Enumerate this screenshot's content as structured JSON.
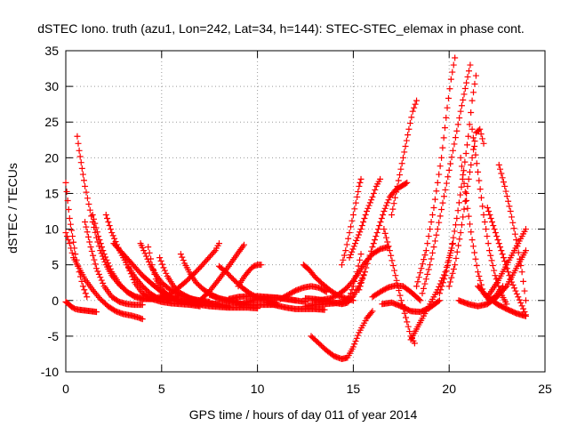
{
  "chart_data": {
    "type": "scatter",
    "title": "dSTEC Iono. truth (azu1, Lon=242, Lat=34, h=144): STEC-STEC_elemax in phase cont.",
    "xlabel": "GPS time / hours of day 011 of year 2014",
    "ylabel": "dSTEC  / TECUs",
    "xlim": [
      0,
      25
    ],
    "ylim": [
      -10,
      35
    ],
    "xticks": [
      0,
      5,
      10,
      15,
      20,
      25
    ],
    "yticks": [
      -10,
      -5,
      0,
      5,
      10,
      15,
      20,
      25,
      30,
      35
    ],
    "grid": true,
    "marker": "+",
    "color": "#ff0000",
    "series": [
      {
        "x": [
          0.0,
          0.15,
          0.3,
          0.5,
          0.7,
          1.0,
          1.3,
          1.6
        ],
        "y": [
          -0.2,
          -0.5,
          -0.9,
          -1.2,
          -1.3,
          -1.4,
          -1.5,
          -1.6
        ]
      },
      {
        "x": [
          0.0,
          0.1,
          0.2,
          0.35,
          0.5,
          0.7,
          0.9,
          1.1
        ],
        "y": [
          16.5,
          14.0,
          11.5,
          9.0,
          6.5,
          4.0,
          2.0,
          0.5
        ]
      },
      {
        "x": [
          0.0,
          0.2,
          0.4,
          0.7,
          1.0,
          1.4,
          1.8,
          2.2,
          2.6,
          3.0,
          3.4,
          3.8,
          4.0
        ],
        "y": [
          9.5,
          8.0,
          6.0,
          4.5,
          3.0,
          1.5,
          0.2,
          -0.8,
          -1.5,
          -1.9,
          -2.1,
          -2.4,
          -2.6
        ]
      },
      {
        "x": [
          0.6,
          0.7,
          0.85,
          1.0,
          1.2,
          1.4,
          1.6,
          1.8,
          2.1,
          2.4,
          2.8,
          3.2,
          3.6,
          4.0,
          4.5
        ],
        "y": [
          23.0,
          21.0,
          18.5,
          16.0,
          13.5,
          11.0,
          8.8,
          7.0,
          5.0,
          3.5,
          2.2,
          1.2,
          0.6,
          0.3,
          0.2
        ]
      },
      {
        "x": [
          1.0,
          1.3,
          1.6,
          2.0,
          2.4,
          2.8,
          3.2,
          3.6,
          4.0
        ],
        "y": [
          11.0,
          7.5,
          4.5,
          2.0,
          0.5,
          -0.2,
          -0.5,
          -0.6,
          -0.6
        ]
      },
      {
        "x": [
          1.4,
          1.7,
          2.0,
          2.4,
          2.8,
          3.2,
          3.6,
          4.0,
          4.4,
          4.8,
          5.2
        ],
        "y": [
          12.0,
          9.0,
          6.5,
          4.0,
          2.3,
          1.2,
          0.5,
          0.2,
          0.2,
          0.4,
          0.8
        ]
      },
      {
        "x": [
          2.1,
          2.4,
          2.8,
          3.2,
          3.6,
          4.0,
          4.4,
          4.8,
          5.2,
          5.6,
          6.0
        ],
        "y": [
          12.0,
          9.5,
          7.0,
          5.0,
          3.3,
          2.0,
          1.0,
          0.3,
          0.1,
          0.3,
          0.9
        ]
      },
      {
        "x": [
          2.5,
          3.0,
          3.5,
          4.0,
          4.5,
          5.0,
          5.5,
          6.0,
          6.5
        ],
        "y": [
          8.0,
          6.5,
          5.0,
          3.5,
          2.3,
          1.2,
          0.4,
          -0.1,
          -0.3
        ]
      },
      {
        "x": [
          3.2,
          3.6,
          4.0,
          4.5,
          5.0,
          5.5,
          6.0,
          6.5,
          7.0
        ],
        "y": [
          5.0,
          2.5,
          1.0,
          0.2,
          -0.2,
          -0.4,
          -0.5,
          -0.6,
          -0.8
        ]
      },
      {
        "x": [
          3.9,
          4.0,
          4.2,
          4.4,
          4.7,
          5.0,
          5.4,
          5.8,
          6.2,
          6.6,
          7.0,
          7.5
        ],
        "y": [
          8.0,
          7.4,
          6.2,
          5.0,
          3.6,
          2.5,
          1.6,
          1.0,
          0.5,
          0.2,
          0.0,
          -0.2
        ]
      },
      {
        "x": [
          4.3,
          4.5,
          4.7,
          5.0,
          5.3,
          5.6,
          6.0,
          6.5,
          7.0,
          7.5,
          8.0
        ],
        "y": [
          7.5,
          5.0,
          3.0,
          1.6,
          0.8,
          0.3,
          0.0,
          -0.2,
          -0.3,
          -0.4,
          -0.5
        ]
      },
      {
        "x": [
          4.9,
          5.1,
          5.3,
          5.6,
          6.0,
          6.5,
          7.0,
          7.5,
          8.0,
          8.5
        ],
        "y": [
          6.0,
          4.6,
          3.4,
          2.1,
          1.0,
          0.3,
          -0.1,
          -0.4,
          -0.6,
          -0.8
        ]
      },
      {
        "x": [
          5.0,
          5.5,
          6.0,
          6.5,
          7.0,
          7.5,
          8.0,
          8.5,
          9.0,
          9.5,
          10.0
        ],
        "y": [
          0.5,
          0.3,
          0.0,
          -0.3,
          -0.6,
          -0.8,
          -0.9,
          -1.0,
          -1.0,
          -1.0,
          -1.1
        ]
      },
      {
        "x": [
          5.0,
          5.4,
          5.8,
          6.2,
          6.6,
          7.0,
          7.4,
          7.8,
          8.0
        ],
        "y": [
          0.2,
          0.8,
          1.6,
          2.5,
          3.5,
          4.6,
          5.8,
          7.0,
          8.0
        ]
      },
      {
        "x": [
          6.0,
          6.2,
          6.5,
          6.8,
          7.2,
          7.6,
          8.0,
          8.5,
          9.0
        ],
        "y": [
          6.5,
          5.2,
          3.7,
          2.5,
          1.5,
          0.8,
          0.3,
          0.0,
          -0.2
        ]
      },
      {
        "x": [
          6.5,
          7.0,
          7.5,
          8.0,
          8.5,
          9.0,
          9.3
        ],
        "y": [
          -0.6,
          0.0,
          1.3,
          3.0,
          4.8,
          6.7,
          7.8
        ]
      },
      {
        "x": [
          7.5,
          8.0,
          8.5,
          9.0,
          9.5,
          10.0,
          10.5,
          11.0
        ],
        "y": [
          0.8,
          0.3,
          -0.1,
          -0.4,
          -0.6,
          -0.6,
          -0.6,
          -0.6
        ]
      },
      {
        "x": [
          8.0,
          8.4,
          8.8,
          9.2,
          9.6,
          10.0,
          10.5,
          11.0
        ],
        "y": [
          4.8,
          3.9,
          2.8,
          1.8,
          1.0,
          0.4,
          0.0,
          -0.3
        ]
      },
      {
        "x": [
          8.5,
          9.0,
          9.5,
          10.0,
          10.5,
          11.0,
          11.5,
          12.0
        ],
        "y": [
          0.2,
          0.5,
          0.6,
          0.6,
          0.5,
          0.4,
          0.2,
          0.0
        ]
      },
      {
        "x": [
          9.0,
          9.5,
          10.0,
          10.5,
          11.0,
          11.5,
          12.0,
          12.5
        ],
        "y": [
          -0.6,
          -0.2,
          0.2,
          0.4,
          0.4,
          0.2,
          0.0,
          -0.2
        ]
      },
      {
        "x": [
          9.0,
          9.3,
          9.6,
          9.8,
          10.0,
          10.2
        ],
        "y": [
          2.0,
          3.3,
          4.3,
          4.8,
          5.0,
          5.0
        ]
      },
      {
        "x": [
          10.5,
          11.0,
          11.5,
          12.0,
          12.5,
          13.0,
          13.5
        ],
        "y": [
          -0.3,
          -0.7,
          -1.0,
          -1.2,
          -1.2,
          -1.2,
          -1.3
        ]
      },
      {
        "x": [
          11.2,
          11.6,
          12.0,
          12.4,
          12.8,
          13.2,
          13.6
        ],
        "y": [
          0.2,
          0.8,
          1.4,
          1.8,
          2.0,
          1.8,
          1.2
        ]
      },
      {
        "x": [
          12.4,
          12.7,
          13.0,
          13.4,
          13.8,
          14.2,
          14.6,
          15.0
        ],
        "y": [
          5.0,
          4.3,
          3.3,
          2.3,
          1.4,
          0.7,
          0.3,
          0.0
        ]
      },
      {
        "x": [
          12.5,
          13.0,
          13.5,
          14.0,
          14.5,
          14.8,
          15.0,
          15.2,
          15.4
        ],
        "y": [
          -0.8,
          -0.6,
          -0.5,
          -0.4,
          -0.2,
          0.5,
          2.0,
          4.0,
          6.5
        ]
      },
      {
        "x": [
          12.5,
          13.0,
          13.5,
          14.0,
          14.4,
          14.7,
          15.0,
          15.3,
          15.6
        ],
        "y": [
          0.3,
          0.2,
          0.0,
          -0.3,
          -0.5,
          -0.3,
          0.6,
          2.0,
          4.0
        ]
      },
      {
        "x": [
          13.0,
          13.4,
          13.8,
          14.2,
          14.6,
          15.0,
          15.3,
          15.6,
          16.0,
          16.4,
          16.8
        ],
        "y": [
          0.0,
          0.1,
          0.3,
          0.8,
          1.6,
          2.8,
          4.0,
          5.3,
          6.5,
          7.2,
          7.5
        ]
      },
      {
        "x": [
          12.8,
          13.2,
          13.6,
          14.0,
          14.4,
          14.7,
          15.0,
          15.3,
          15.7,
          16.0
        ],
        "y": [
          -5.0,
          -6.0,
          -7.0,
          -7.8,
          -8.2,
          -8.0,
          -6.5,
          -4.5,
          -2.5,
          -1.5
        ]
      },
      {
        "x": [
          14.4,
          14.6,
          14.8,
          15.0,
          15.2,
          15.3,
          15.4
        ],
        "y": [
          5.0,
          7.0,
          9.5,
          12.0,
          14.5,
          16.0,
          17.0
        ]
      },
      {
        "x": [
          14.8,
          15.1,
          15.4,
          15.7,
          16.0,
          16.2,
          16.4
        ],
        "y": [
          6.0,
          8.0,
          10.0,
          12.5,
          14.5,
          16.0,
          17.0
        ]
      },
      {
        "x": [
          15.3,
          15.6,
          16.0,
          16.3,
          16.6,
          16.9,
          17.2,
          17.5,
          17.8
        ],
        "y": [
          1.5,
          4.0,
          7.5,
          10.0,
          12.5,
          14.5,
          15.5,
          16.0,
          16.5
        ]
      },
      {
        "x": [
          16.0,
          16.4,
          16.8,
          17.2,
          17.6,
          18.0,
          18.5
        ],
        "y": [
          0.5,
          1.2,
          1.8,
          2.1,
          2.0,
          1.2,
          0.0
        ]
      },
      {
        "x": [
          16.5,
          17.0,
          17.5,
          18.0,
          18.5,
          19.0,
          19.5
        ],
        "y": [
          -0.5,
          -0.3,
          -0.8,
          -1.5,
          -1.6,
          -1.0,
          0.0
        ]
      },
      {
        "x": [
          17.0,
          17.3,
          17.6,
          17.9,
          18.1,
          18.3
        ],
        "y": [
          12.0,
          16.0,
          20.0,
          24.0,
          26.5,
          28.0
        ]
      },
      {
        "x": [
          16.6,
          16.9,
          17.2,
          17.5,
          17.8,
          18.0,
          18.2
        ],
        "y": [
          10.0,
          7.0,
          3.5,
          0.0,
          -3.0,
          -5.0,
          -6.0
        ]
      },
      {
        "x": [
          18.0,
          18.3,
          18.6,
          19.0,
          19.4,
          19.8,
          20.2
        ],
        "y": [
          -5.5,
          -4.0,
          -2.5,
          -0.5,
          1.5,
          4.0,
          8.0
        ]
      },
      {
        "x": [
          18.3,
          18.8,
          19.2,
          19.6,
          19.9,
          20.1,
          20.3
        ],
        "y": [
          2.0,
          7.0,
          13.0,
          20.0,
          27.0,
          31.0,
          34.0
        ]
      },
      {
        "x": [
          18.6,
          19.0,
          19.4,
          19.8,
          20.2,
          20.6,
          20.9,
          21.1
        ],
        "y": [
          1.0,
          5.0,
          10.0,
          15.5,
          21.0,
          26.5,
          30.5,
          33.0
        ]
      },
      {
        "x": [
          19.5,
          19.8,
          20.1,
          20.4,
          20.7,
          21.0,
          21.2,
          21.4
        ],
        "y": [
          1.0,
          3.5,
          7.0,
          11.5,
          17.0,
          23.0,
          28.0,
          31.5
        ]
      },
      {
        "x": [
          20.0,
          20.3,
          20.6,
          20.9,
          21.2,
          21.4,
          21.6,
          21.8
        ],
        "y": [
          2.0,
          5.0,
          9.5,
          15.0,
          20.0,
          23.5,
          24.0,
          22.0
        ]
      },
      {
        "x": [
          21.2,
          21.5,
          21.8,
          22.1,
          22.4,
          22.7,
          23.0
        ],
        "y": [
          24.0,
          18.0,
          12.0,
          7.0,
          3.5,
          1.0,
          -0.5
        ]
      },
      {
        "x": [
          20.6,
          20.9,
          21.2,
          21.5,
          21.8,
          22.1,
          22.4,
          22.8
        ],
        "y": [
          20.0,
          14.0,
          8.5,
          4.0,
          1.0,
          0.0,
          0.5,
          2.0
        ]
      },
      {
        "x": [
          22.0,
          22.3,
          22.6,
          22.9,
          23.2,
          23.6,
          24.0
        ],
        "y": [
          13.0,
          10.5,
          8.0,
          5.5,
          3.0,
          0.5,
          -2.0
        ]
      },
      {
        "x": [
          22.6,
          22.9,
          23.2,
          23.5,
          23.8,
          24.0
        ],
        "y": [
          19.0,
          16.0,
          12.5,
          8.5,
          4.0,
          0.0
        ]
      },
      {
        "x": [
          22.0,
          22.5,
          23.0,
          23.4,
          23.8,
          24.0
        ],
        "y": [
          0.5,
          2.5,
          5.0,
          7.0,
          9.0,
          10.0
        ]
      },
      {
        "x": [
          20.5,
          21.0,
          21.5,
          22.0,
          22.5,
          23.0,
          23.5,
          24.0
        ],
        "y": [
          0.0,
          -0.5,
          -0.8,
          -0.5,
          0.5,
          2.0,
          4.5,
          7.0
        ]
      },
      {
        "x": [
          21.5,
          22.0,
          22.5,
          23.0,
          23.5,
          24.0
        ],
        "y": [
          2.0,
          0.5,
          -0.5,
          -1.2,
          -1.8,
          -2.2
        ]
      }
    ]
  }
}
